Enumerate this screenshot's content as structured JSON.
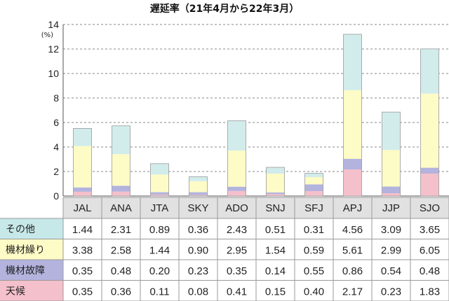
{
  "chart_data": {
    "type": "bar",
    "stacked": true,
    "title": "遅延率（21年4月から22年3月）",
    "unit": "(%)",
    "ylim": [
      0,
      14
    ],
    "yticks": [
      0,
      2,
      4,
      6,
      8,
      10,
      12,
      14
    ],
    "grid": "dashed horizontal",
    "categories": [
      "JAL",
      "ANA",
      "JTA",
      "SKY",
      "ADO",
      "SNJ",
      "SFJ",
      "APJ",
      "JJP",
      "SJO"
    ],
    "series": [
      {
        "name": "天候",
        "color": "#f4c0cb",
        "values": [
          0.35,
          0.36,
          0.11,
          0.08,
          0.41,
          0.15,
          0.4,
          2.17,
          0.23,
          1.83
        ]
      },
      {
        "name": "機材故障",
        "color": "#b3b3de",
        "values": [
          0.35,
          0.48,
          0.2,
          0.23,
          0.35,
          0.14,
          0.55,
          0.86,
          0.54,
          0.48
        ]
      },
      {
        "name": "機材繰り",
        "color": "#fdfbc6",
        "values": [
          3.38,
          2.58,
          1.44,
          0.9,
          2.95,
          1.54,
          0.59,
          5.61,
          2.99,
          6.05
        ]
      },
      {
        "name": "その他",
        "color": "#d2ecec",
        "values": [
          1.44,
          2.31,
          0.89,
          0.36,
          2.43,
          0.51,
          0.31,
          4.56,
          3.09,
          3.65
        ]
      }
    ],
    "table": {
      "header_bg": "#e1e1e1",
      "row_order": [
        "その他",
        "機材繰り",
        "機材故障",
        "天候"
      ],
      "rows": [
        {
          "label": "その他",
          "color": "#c7e8e8",
          "cells": [
            "1.44",
            "2.31",
            "0.89",
            "0.36",
            "2.43",
            "0.51",
            "0.31",
            "4.56",
            "3.09",
            "3.65"
          ]
        },
        {
          "label": "機材繰り",
          "color": "#fdfbc6",
          "cells": [
            "3.38",
            "2.58",
            "1.44",
            "0.90",
            "2.95",
            "1.54",
            "0.59",
            "5.61",
            "2.99",
            "6.05"
          ]
        },
        {
          "label": "機材故障",
          "color": "#b3b3de",
          "cells": [
            "0.35",
            "0.48",
            "0.20",
            "0.23",
            "0.35",
            "0.14",
            "0.55",
            "0.86",
            "0.54",
            "0.48"
          ]
        },
        {
          "label": "天候",
          "color": "#f4c0cb",
          "cells": [
            "0.35",
            "0.36",
            "0.11",
            "0.08",
            "0.41",
            "0.15",
            "0.40",
            "2.17",
            "0.23",
            "1.83"
          ]
        }
      ]
    }
  }
}
